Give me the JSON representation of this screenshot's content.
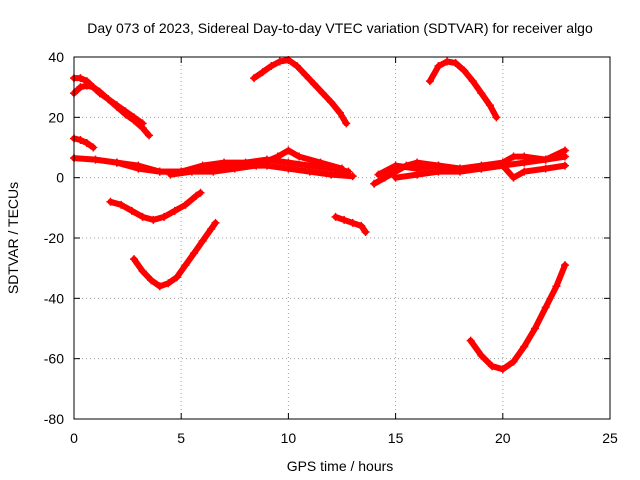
{
  "chart_data": {
    "type": "scatter",
    "title": "Day 073 of 2023, Sidereal Day-to-day VTEC variation (SDTVAR) for receiver algo",
    "xlabel": "GPS time / hours",
    "ylabel": "SDTVAR / TECUs",
    "xlim": [
      0,
      25
    ],
    "ylim": [
      -80,
      40
    ],
    "xticks": [
      0,
      5,
      10,
      15,
      20,
      25
    ],
    "yticks": [
      -80,
      -60,
      -40,
      -20,
      0,
      20,
      40
    ],
    "grid": true,
    "marker_color": "#ff0000",
    "series": [
      {
        "name": "arc-1",
        "x": [
          0.0,
          0.3,
          0.6,
          0.9,
          1.2,
          1.6,
          2.0,
          2.4,
          2.8,
          3.2,
          3.5
        ],
        "y": [
          28,
          30,
          30.5,
          30,
          28.5,
          26,
          23.5,
          21,
          19,
          16.5,
          14
        ]
      },
      {
        "name": "arc-2",
        "x": [
          0.0,
          0.3,
          0.6,
          0.9,
          1.2,
          1.6,
          2.0,
          2.4,
          2.8,
          3.2
        ],
        "y": [
          33,
          33,
          32,
          30,
          28,
          26,
          24,
          22,
          20,
          18
        ]
      },
      {
        "name": "arc-3",
        "x": [
          0.0,
          0.3,
          0.6,
          0.9
        ],
        "y": [
          13,
          12.5,
          11.5,
          10
        ]
      },
      {
        "name": "arc-4",
        "x": [
          0.0,
          1.0,
          2.0,
          3.0,
          4.0,
          5.0,
          6.0,
          7.0,
          8.0,
          9.0,
          10.0,
          11.0,
          12.0,
          13.0
        ],
        "y": [
          6.5,
          6,
          5,
          3,
          2,
          2,
          3,
          3,
          4,
          4,
          3,
          2,
          1,
          0.5
        ]
      },
      {
        "name": "arc-5",
        "x": [
          2.0,
          3.0,
          4.0,
          5.0,
          6.0,
          7.0,
          8.0,
          9.0,
          10.0,
          11.0,
          12.0,
          12.8
        ],
        "y": [
          5,
          4,
          2,
          2,
          4,
          5,
          5,
          6,
          5,
          4,
          3,
          2
        ]
      },
      {
        "name": "arc-6",
        "x": [
          4.5,
          5.5,
          6.5,
          7.5,
          8.5,
          9.5,
          10.0,
          10.5,
          11.5,
          12.5
        ],
        "y": [
          1,
          2,
          2,
          3,
          4,
          7,
          9,
          7,
          5,
          3
        ]
      },
      {
        "name": "arc-7",
        "x": [
          1.7,
          2.2,
          2.7,
          3.2,
          3.7,
          4.2,
          4.7,
          5.2,
          5.7,
          5.9
        ],
        "y": [
          -8,
          -9,
          -11,
          -13,
          -14,
          -13,
          -11,
          -9,
          -6,
          -5
        ]
      },
      {
        "name": "arc-8",
        "x": [
          2.8,
          3.2,
          3.6,
          4.0,
          4.4,
          4.8,
          5.2,
          5.6,
          6.0,
          6.4,
          6.6
        ],
        "y": [
          -27,
          -31,
          -34,
          -36,
          -35,
          -33,
          -29,
          -25,
          -21,
          -17,
          -15
        ]
      },
      {
        "name": "arc-9",
        "x": [
          8.4,
          8.8,
          9.2,
          9.6,
          10.0,
          10.4,
          10.8,
          11.2,
          11.6,
          12.0,
          12.4,
          12.7
        ],
        "y": [
          33,
          35,
          37,
          38.5,
          39,
          37,
          34,
          31,
          28,
          25,
          21.5,
          18
        ]
      },
      {
        "name": "arc-10",
        "x": [
          12.2,
          12.6,
          13.0,
          13.4,
          13.6
        ],
        "y": [
          -13,
          -14,
          -15,
          -16,
          -18
        ]
      },
      {
        "name": "arc-11",
        "x": [
          14.0,
          14.5,
          15.0,
          15.5,
          16.0,
          17.0,
          18.0,
          19.0,
          20.0,
          21.0,
          22.0,
          22.9
        ],
        "y": [
          -2,
          0,
          2,
          4,
          5,
          4,
          3,
          3,
          4,
          5,
          6,
          7
        ]
      },
      {
        "name": "arc-12",
        "x": [
          14.2,
          15.0,
          16.0,
          17.0,
          18.0,
          19.0,
          20.0,
          20.5,
          21.0,
          22.0,
          22.9
        ],
        "y": [
          1,
          4,
          3,
          4,
          3,
          4,
          5,
          7,
          7,
          6,
          9
        ]
      },
      {
        "name": "arc-13",
        "x": [
          15.0,
          16.0,
          17.0,
          18.0,
          19.0,
          20.0,
          20.5,
          21.0,
          22.0,
          22.9
        ],
        "y": [
          0,
          1,
          2,
          2,
          3,
          4,
          0,
          2,
          3,
          4
        ]
      },
      {
        "name": "arc-14",
        "x": [
          16.6,
          17.0,
          17.4,
          17.8,
          18.2,
          18.6,
          19.0,
          19.4,
          19.7
        ],
        "y": [
          32,
          37,
          38.5,
          38,
          35.5,
          32,
          28,
          24,
          20
        ]
      },
      {
        "name": "arc-15",
        "x": [
          18.5,
          19.0,
          19.5,
          20.0,
          20.5,
          21.0,
          21.5,
          22.0,
          22.5,
          22.9
        ],
        "y": [
          -54,
          -59,
          -62.5,
          -63.5,
          -61,
          -56,
          -50,
          -43,
          -36,
          -29
        ]
      }
    ]
  }
}
